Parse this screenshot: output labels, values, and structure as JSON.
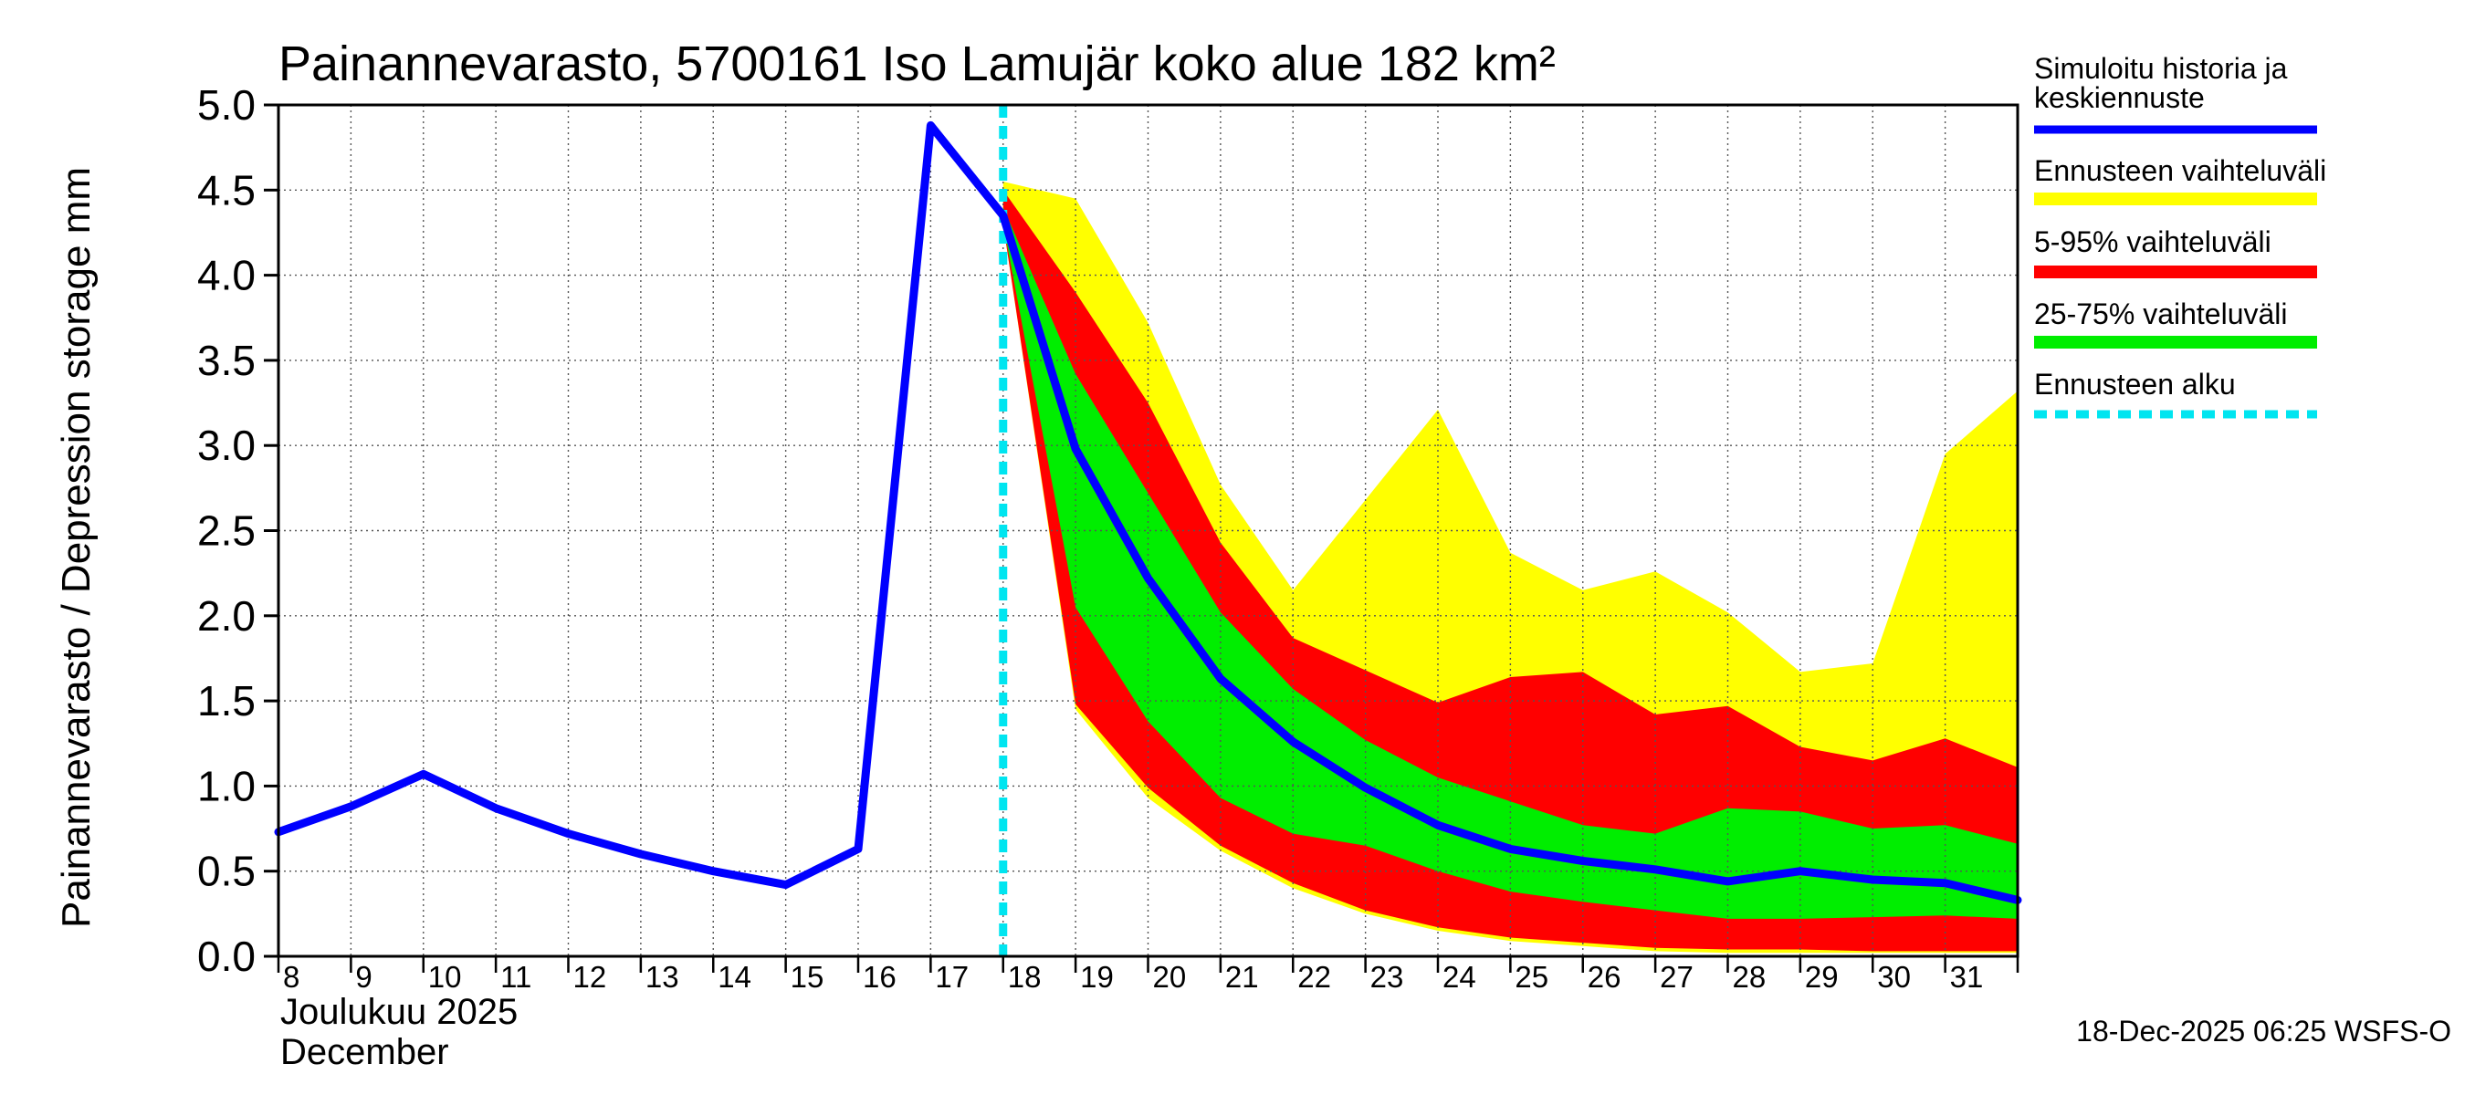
{
  "chart_data": {
    "type": "area",
    "title": "Painannevarasto, 5700161 Iso Lamujär koko alue 182 km²",
    "ylabel": "Painannevarasto / Depression storage    mm",
    "ylim": [
      0,
      5.0
    ],
    "yticks": [
      "0.0",
      "0.5",
      "1.0",
      "1.5",
      "2.0",
      "2.5",
      "3.0",
      "3.5",
      "4.0",
      "4.5",
      "5.0"
    ],
    "xlim": [
      8,
      32
    ],
    "x_tick_labels": [
      "8",
      "9",
      "10",
      "11",
      "12",
      "13",
      "14",
      "15",
      "16",
      "17",
      "18",
      "19",
      "20",
      "21",
      "22",
      "23",
      "24",
      "25",
      "26",
      "27",
      "28",
      "29",
      "30",
      "31"
    ],
    "month_label_fi": "Joulukuu  2025",
    "month_label_en": "December",
    "forecast_start": 18.0,
    "history": {
      "x": [
        8,
        9,
        10,
        11,
        12,
        13,
        14,
        15,
        16,
        17,
        18
      ],
      "y": [
        0.73,
        0.88,
        1.07,
        0.87,
        0.72,
        0.6,
        0.5,
        0.42,
        0.63,
        4.88,
        4.35
      ]
    },
    "forecast_x": [
      18,
      19,
      20,
      21,
      22,
      23,
      24,
      25,
      26,
      27,
      28,
      29,
      30,
      31,
      32
    ],
    "median": [
      4.35,
      2.98,
      2.22,
      1.63,
      1.26,
      0.99,
      0.77,
      0.63,
      0.56,
      0.51,
      0.44,
      0.5,
      0.45,
      0.43,
      0.33
    ],
    "range_min": [
      4.3,
      1.45,
      0.93,
      0.62,
      0.4,
      0.25,
      0.15,
      0.09,
      0.06,
      0.03,
      0.02,
      0.02,
      0.02,
      0.02,
      0.02
    ],
    "range_max": [
      4.55,
      4.45,
      3.72,
      2.77,
      2.15,
      2.68,
      3.21,
      2.37,
      2.15,
      2.26,
      2.02,
      1.67,
      1.72,
      2.95,
      3.32
    ],
    "p5": [
      4.3,
      1.48,
      0.99,
      0.65,
      0.43,
      0.27,
      0.17,
      0.11,
      0.08,
      0.05,
      0.04,
      0.04,
      0.03,
      0.03,
      0.03
    ],
    "p95": [
      4.5,
      3.9,
      3.25,
      2.43,
      1.87,
      1.68,
      1.49,
      1.64,
      1.67,
      1.42,
      1.47,
      1.23,
      1.15,
      1.28,
      1.11
    ],
    "p25": [
      4.3,
      2.05,
      1.38,
      0.93,
      0.72,
      0.65,
      0.5,
      0.38,
      0.32,
      0.27,
      0.22,
      0.22,
      0.23,
      0.24,
      0.22
    ],
    "p75": [
      4.4,
      3.42,
      2.72,
      2.02,
      1.57,
      1.27,
      1.05,
      0.91,
      0.77,
      0.72,
      0.87,
      0.85,
      0.75,
      0.77,
      0.66
    ],
    "legend": [
      {
        "label": "Simuloitu historia ja keskiennuste",
        "color": "#0000ff",
        "style": "line"
      },
      {
        "label": "Ennusteen vaihteluväli",
        "color": "#ffff00",
        "style": "band"
      },
      {
        "label": "5-95% vaihteluväli",
        "color": "#ff0000",
        "style": "band"
      },
      {
        "label": "25-75% vaihteluväli",
        "color": "#00ee00",
        "style": "band"
      },
      {
        "label": "Ennusteen alku",
        "color": "#00e5f0",
        "style": "dashed"
      }
    ],
    "legend_position": "right",
    "grid": true,
    "footer": "18-Dec-2025 06:25 WSFS-O"
  }
}
